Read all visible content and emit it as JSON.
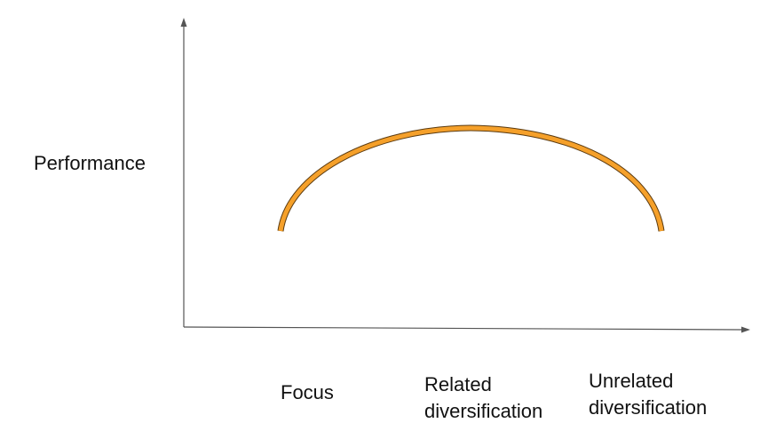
{
  "diagram": {
    "y_axis_label": "Performance",
    "x_labels": [
      {
        "lines": [
          "Focus"
        ]
      },
      {
        "lines": [
          "Related",
          "diversification"
        ]
      },
      {
        "lines": [
          "Unrelated",
          "diversification"
        ]
      }
    ],
    "colors": {
      "axis": "#555555",
      "curve_fill": "#f5a02a",
      "curve_outline": "#5a3a10"
    }
  }
}
